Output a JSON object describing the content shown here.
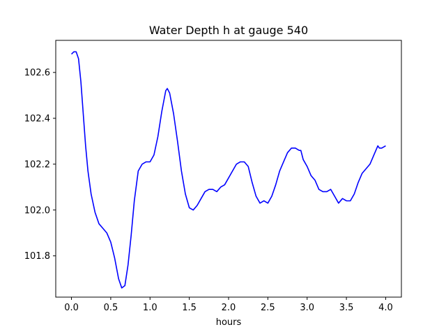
{
  "chart_data": {
    "type": "line",
    "title": "Water Depth h at gauge 540",
    "xlabel": "hours",
    "ylabel": "",
    "xlim": [
      -0.2,
      4.2
    ],
    "ylim": [
      101.62,
      102.74
    ],
    "xticks": [
      0.0,
      0.5,
      1.0,
      1.5,
      2.0,
      2.5,
      3.0,
      3.5,
      4.0
    ],
    "xtick_labels": [
      "0.0",
      "0.5",
      "1.0",
      "1.5",
      "2.0",
      "2.5",
      "3.0",
      "3.5",
      "4.0"
    ],
    "yticks": [
      101.8,
      102.0,
      102.2,
      102.4,
      102.6
    ],
    "ytick_labels": [
      "101.8",
      "102.0",
      "102.2",
      "102.4",
      "102.6"
    ],
    "grid": false,
    "color": "#0000ff",
    "series": [
      {
        "name": "",
        "x": [
          0.0,
          0.03,
          0.06,
          0.09,
          0.12,
          0.15,
          0.18,
          0.21,
          0.25,
          0.3,
          0.35,
          0.4,
          0.45,
          0.5,
          0.55,
          0.6,
          0.64,
          0.68,
          0.72,
          0.76,
          0.8,
          0.85,
          0.9,
          0.95,
          1.0,
          1.05,
          1.1,
          1.15,
          1.2,
          1.22,
          1.25,
          1.3,
          1.35,
          1.4,
          1.45,
          1.5,
          1.55,
          1.6,
          1.65,
          1.7,
          1.75,
          1.8,
          1.85,
          1.9,
          1.95,
          2.0,
          2.05,
          2.1,
          2.15,
          2.2,
          2.25,
          2.3,
          2.35,
          2.4,
          2.45,
          2.5,
          2.55,
          2.6,
          2.65,
          2.7,
          2.75,
          2.8,
          2.85,
          2.9,
          2.92,
          2.95,
          3.0,
          3.05,
          3.1,
          3.15,
          3.2,
          3.25,
          3.3,
          3.35,
          3.4,
          3.45,
          3.5,
          3.55,
          3.6,
          3.65,
          3.7,
          3.75,
          3.8,
          3.85,
          3.9,
          3.92,
          3.95,
          4.0
        ],
        "y": [
          102.68,
          102.69,
          102.69,
          102.66,
          102.56,
          102.42,
          102.28,
          102.17,
          102.07,
          101.99,
          101.94,
          101.92,
          101.9,
          101.86,
          101.79,
          101.7,
          101.66,
          101.67,
          101.76,
          101.89,
          102.04,
          102.17,
          102.2,
          102.21,
          102.21,
          102.24,
          102.32,
          102.43,
          102.52,
          102.53,
          102.51,
          102.42,
          102.3,
          102.17,
          102.07,
          102.01,
          102.0,
          102.02,
          102.05,
          102.08,
          102.09,
          102.09,
          102.08,
          102.1,
          102.11,
          102.14,
          102.17,
          102.2,
          102.21,
          102.21,
          102.19,
          102.12,
          102.06,
          102.03,
          102.04,
          102.03,
          102.06,
          102.11,
          102.17,
          102.21,
          102.25,
          102.27,
          102.27,
          102.26,
          102.26,
          102.22,
          102.19,
          102.15,
          102.13,
          102.09,
          102.08,
          102.08,
          102.09,
          102.06,
          102.03,
          102.05,
          102.04,
          102.04,
          102.07,
          102.12,
          102.16,
          102.18,
          102.2,
          102.24,
          102.28,
          102.27,
          102.27,
          102.28
        ]
      }
    ]
  }
}
